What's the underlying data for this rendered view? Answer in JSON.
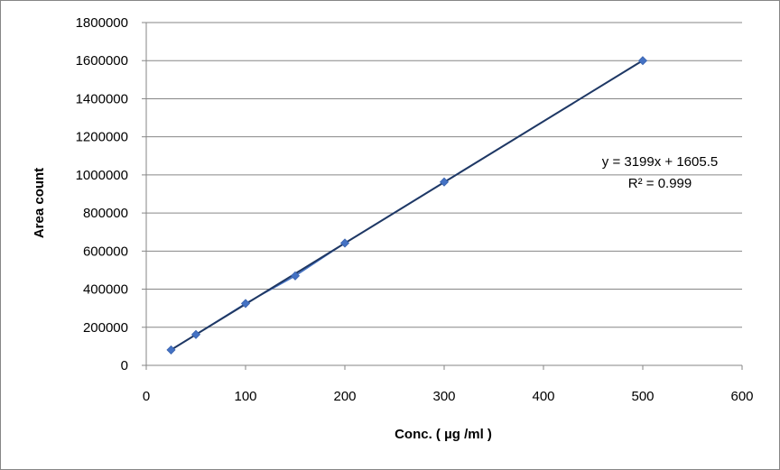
{
  "chart_data": {
    "type": "scatter",
    "title": "",
    "xlabel": "Conc. ( µg /ml )",
    "ylabel": "Area count",
    "xlim": [
      0,
      600
    ],
    "ylim": [
      0,
      1800000
    ],
    "x_ticks": [
      "0",
      "100",
      "200",
      "300",
      "400",
      "500",
      "600"
    ],
    "y_ticks": [
      "0",
      "200000",
      "400000",
      "600000",
      "800000",
      "1000000",
      "1200000",
      "1400000",
      "1600000",
      "1800000"
    ],
    "grid": "horizontal",
    "legend": "none",
    "series": [
      {
        "x": [
          25,
          50,
          100,
          150,
          200,
          300,
          500
        ],
        "y": [
          81000,
          162000,
          325000,
          470000,
          642000,
          963000,
          1600000
        ],
        "color": "#4472C4",
        "marker": "diamond",
        "connect_line": true
      }
    ],
    "trendline": {
      "type": "linear",
      "slope": 3199,
      "intercept": 1605.5,
      "color": "#1F3864",
      "equation_text": "y = 3199x + 1605.5",
      "r2_label": "R² = 0.999"
    }
  }
}
